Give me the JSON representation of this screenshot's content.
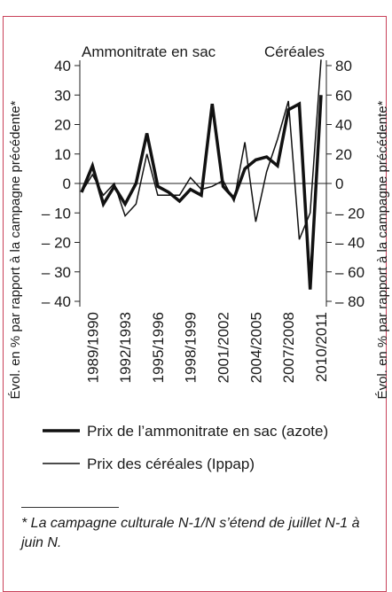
{
  "chart_data": {
    "type": "line",
    "ylabel": "Évol. en % par rapport à la campagne précédente*",
    "y2label": "Évol. en % par rapport à la campagne précédente*",
    "annotations": [
      "Ammonitrate en sac",
      "Céréales"
    ],
    "categories": [
      null,
      "1989/1990",
      null,
      null,
      "1992/1993",
      null,
      null,
      "1995/1996",
      null,
      null,
      "1998/1999",
      null,
      null,
      "2001/2002",
      null,
      null,
      "2004/2005",
      null,
      null,
      "2007/2008",
      null,
      null,
      "2010/2011"
    ],
    "series": [
      {
        "name": "Prix de l’ammonitrate en sac (azote)",
        "color": "#111111",
        "line_width": 3.5,
        "values": [
          -3,
          6,
          -7,
          -1,
          -7,
          0,
          17,
          -1,
          -3,
          -6,
          -2,
          -4,
          27,
          -1,
          -5,
          5,
          8,
          9,
          6,
          25,
          27,
          -36,
          30
        ]
      },
      {
        "name": "Prix des céréales (Ippap)",
        "color": "#111111",
        "line_width": 1.5,
        "axis": "y2",
        "values": [
          -6,
          6,
          -8,
          0,
          -22,
          -14,
          20,
          -8,
          -8,
          -8,
          4,
          -4,
          -2,
          2,
          -12,
          28,
          -26,
          8,
          30,
          56,
          -38,
          -20,
          84
        ]
      }
    ],
    "ylim": [
      -40,
      40
    ],
    "yticks": [
      {
        "value": -40,
        "label": "– 40"
      },
      {
        "value": -30,
        "label": "– 30"
      },
      {
        "value": -20,
        "label": "– 20"
      },
      {
        "value": -10,
        "label": "– 10"
      },
      0,
      10,
      20,
      30,
      40
    ],
    "y2lim": [
      -80,
      80
    ],
    "y2ticks": [
      {
        "value": -80,
        "label": "– 80"
      },
      {
        "value": -60,
        "label": "– 60"
      },
      {
        "value": -40,
        "label": "– 40"
      },
      {
        "value": -20,
        "label": "– 20"
      },
      0,
      20,
      40,
      60,
      80
    ],
    "zero_line": true
  },
  "footnote": "* La campagne culturale N-1/N s’étend de juillet N-1 à juin N."
}
